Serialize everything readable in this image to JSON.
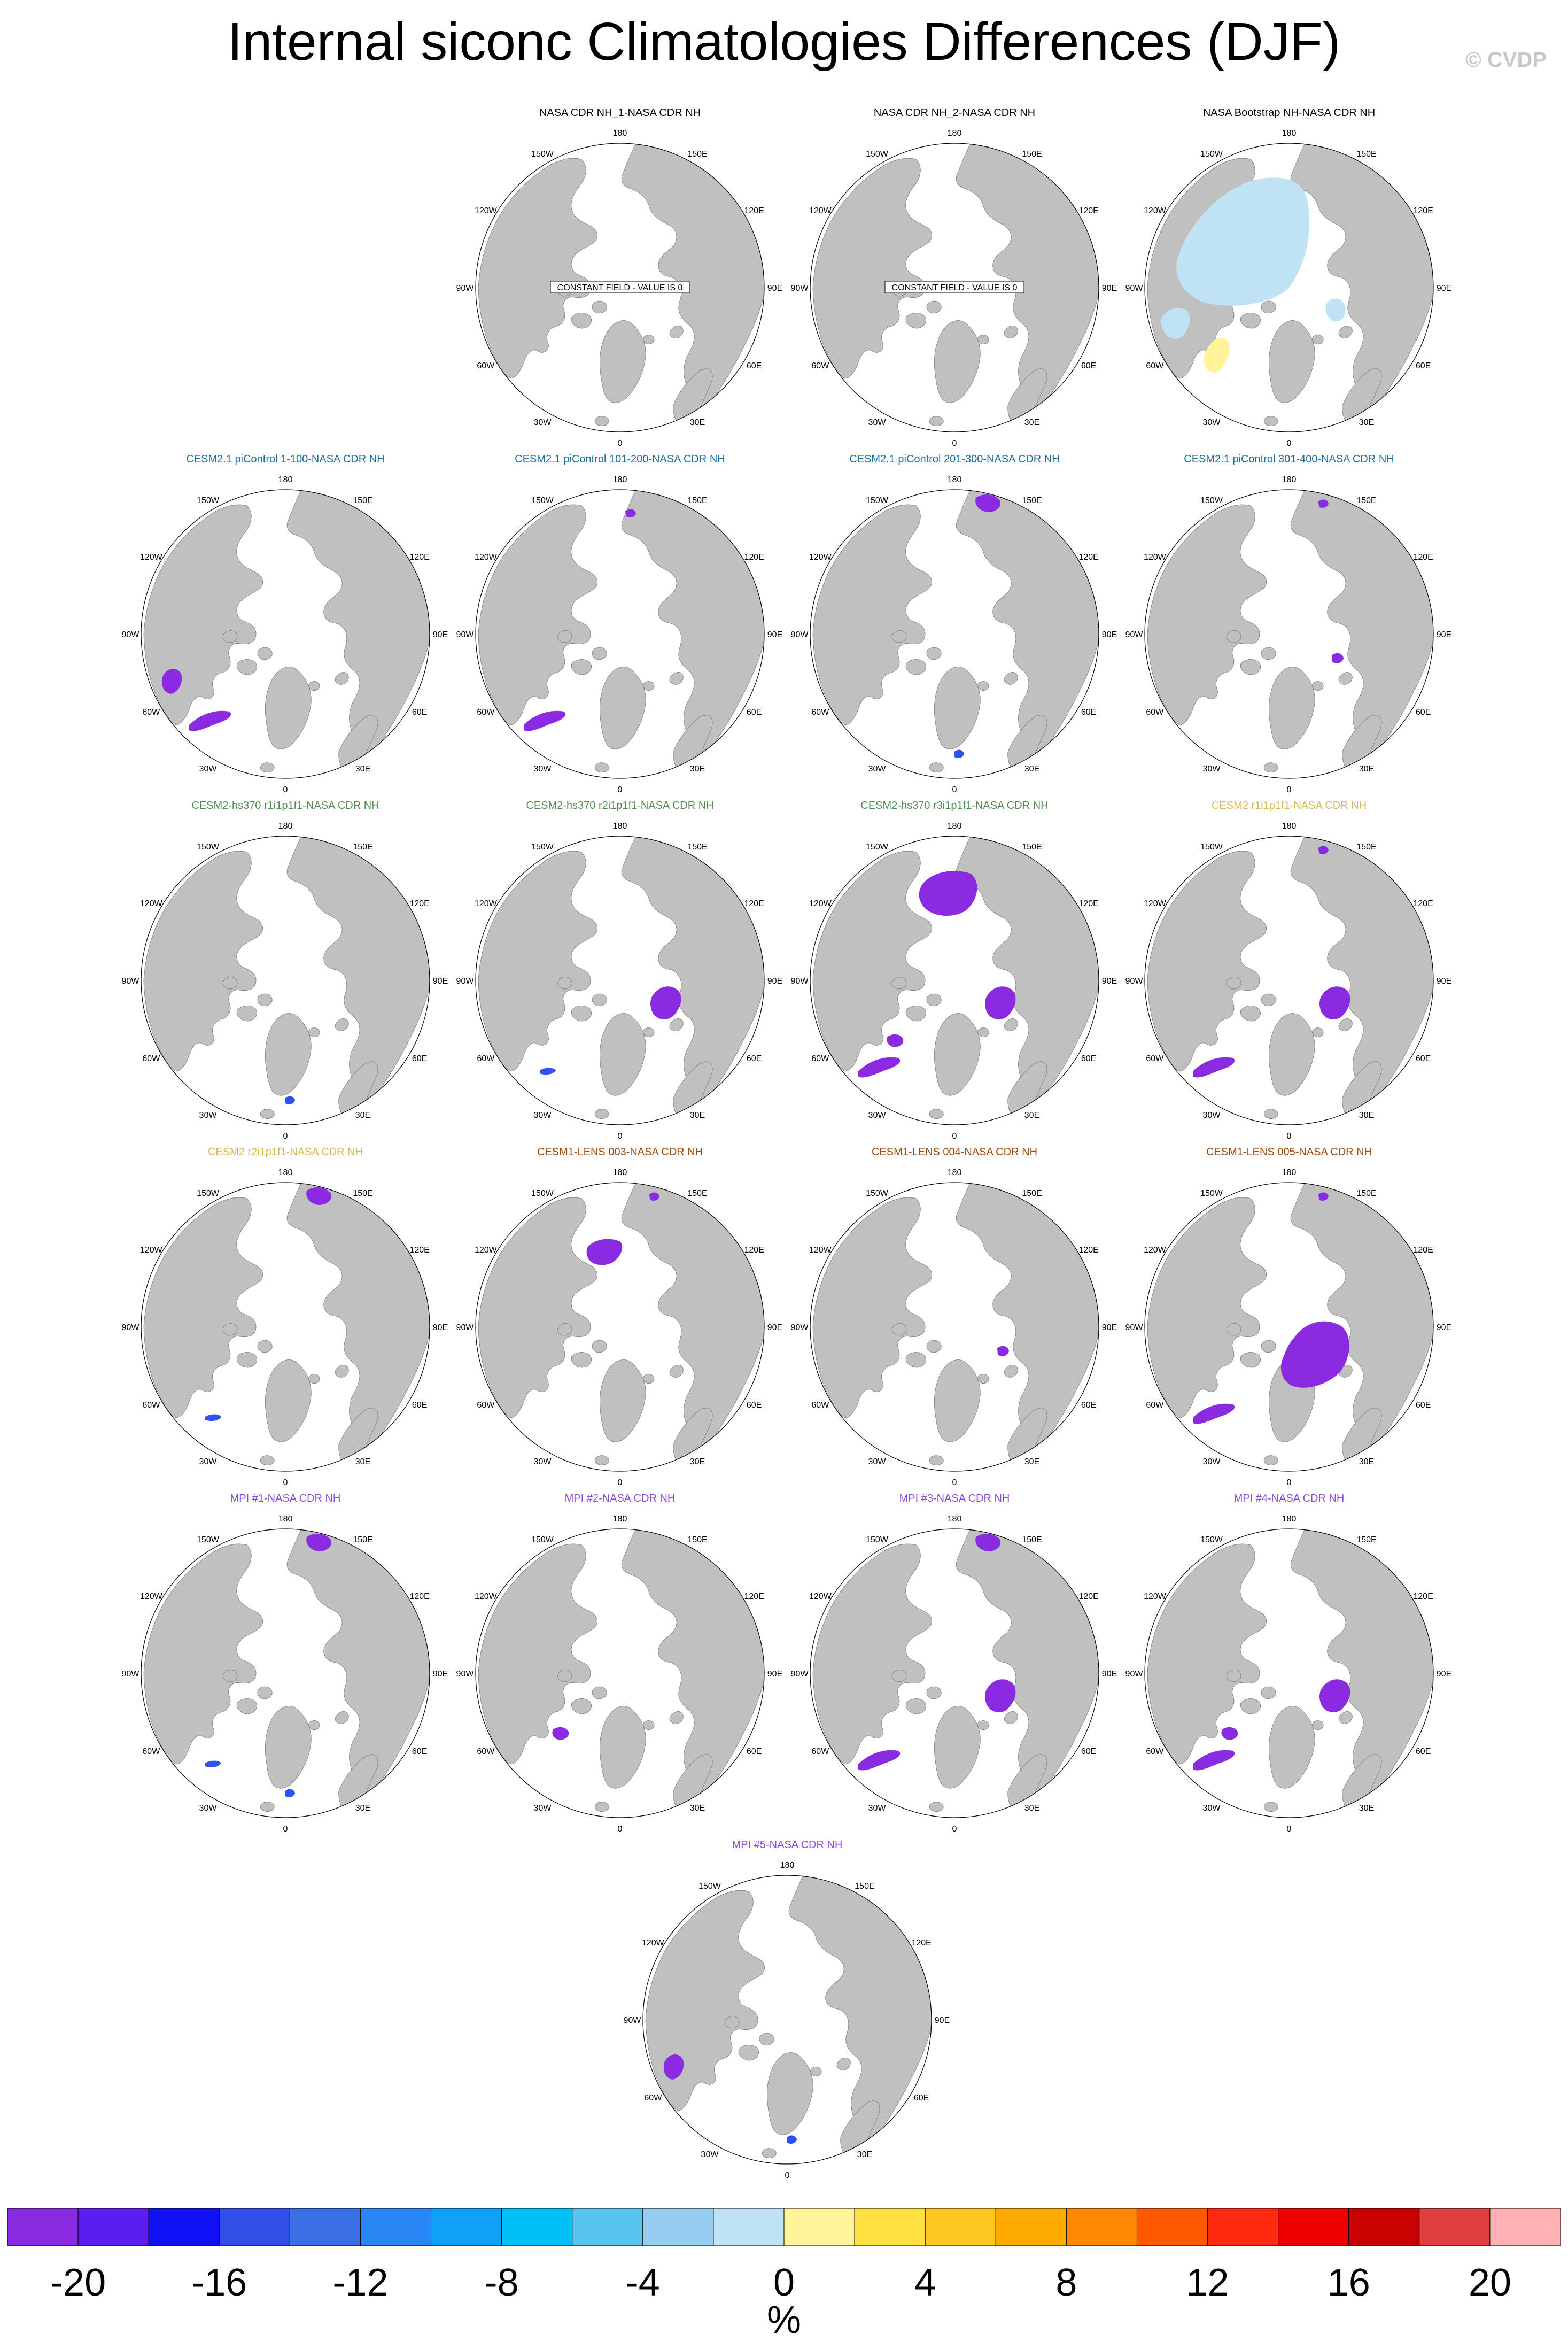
{
  "title": "Internal siconc Climatologies Differences (DJF)",
  "credit": "© CVDP",
  "lon_labels": [
    "180",
    "150E",
    "120E",
    "90E",
    "60E",
    "30E",
    "0",
    "30W",
    "60W",
    "90W",
    "120W",
    "150W"
  ],
  "constant_field_note": "CONSTANT FIELD - VALUE IS 0",
  "colors": {
    "ocean": "#ffffff",
    "land": "#c0c0c0",
    "anomaly_purple": "#8a2be2",
    "anomaly_blue": "#3050f0",
    "anomaly_lightblue": "#bfe3f5",
    "anomaly_yellow": "#fff49a",
    "title_nasa": "#000000",
    "title_cesm21": "#1f6f9a",
    "title_cesm2_hs370": "#4f8a4f",
    "title_cesm2": "#d4b85a",
    "title_cesm1": "#9a4a10",
    "title_mpi": "#8a4ae0"
  },
  "panels": [
    {
      "title": "NASA CDR NH_1-NASA CDR NH",
      "group": "nasa",
      "constant": true,
      "anomalies": []
    },
    {
      "title": "NASA CDR NH_2-NASA CDR NH",
      "group": "nasa",
      "constant": true,
      "anomalies": []
    },
    {
      "title": "NASA Bootstrap NH-NASA CDR NH",
      "group": "nasa",
      "constant": false,
      "anomalies": [
        "central-arctic-lightblue",
        "hudson-bay-lightblue",
        "baffin-yellow",
        "barents-lightblue"
      ]
    },
    {
      "title": "CESM2.1 piControl 1-100-NASA CDR NH",
      "group": "cesm21",
      "constant": false,
      "anomalies": [
        "hudson-bay-purple",
        "labrador-purple"
      ]
    },
    {
      "title": "CESM2.1 piControl 101-200-NASA CDR NH",
      "group": "cesm21",
      "constant": false,
      "anomalies": [
        "labrador-purple",
        "bering-small"
      ]
    },
    {
      "title": "CESM2.1 piControl 201-300-NASA CDR NH",
      "group": "cesm21",
      "constant": false,
      "anomalies": [
        "okhotsk-purple",
        "greenland-sea-small"
      ]
    },
    {
      "title": "CESM2.1 piControl 301-400-NASA CDR NH",
      "group": "cesm21",
      "constant": false,
      "anomalies": [
        "okhotsk-small",
        "barents-small"
      ]
    },
    {
      "title": "CESM2-hs370 r1i1p1f1-NASA CDR NH",
      "group": "cesm2_hs370",
      "constant": false,
      "anomalies": [
        "greenland-sea-small"
      ]
    },
    {
      "title": "CESM2-hs370 r2i1p1f1-NASA CDR NH",
      "group": "cesm2_hs370",
      "constant": false,
      "anomalies": [
        "barents-purple",
        "labrador-small"
      ]
    },
    {
      "title": "CESM2-hs370 r3i1p1f1-NASA CDR NH",
      "group": "cesm2_hs370",
      "constant": false,
      "anomalies": [
        "chukchi-big",
        "barents-purple",
        "labrador-purple",
        "hudson-strait"
      ]
    },
    {
      "title": "CESM2 r1i1p1f1-NASA CDR NH",
      "group": "cesm2",
      "constant": false,
      "anomalies": [
        "okhotsk-small",
        "barents-purple",
        "labrador-purple"
      ]
    },
    {
      "title": "CESM2 r2i1p1f1-NASA CDR NH",
      "group": "cesm2",
      "constant": false,
      "anomalies": [
        "okhotsk-purple",
        "labrador-small"
      ]
    },
    {
      "title": "CESM1-LENS 003-NASA CDR NH",
      "group": "cesm1",
      "constant": false,
      "anomalies": [
        "chukchi-mid",
        "okhotsk-small"
      ]
    },
    {
      "title": "CESM1-LENS 004-NASA CDR NH",
      "group": "cesm1",
      "constant": false,
      "anomalies": [
        "barents-small"
      ]
    },
    {
      "title": "CESM1-LENS 005-NASA CDR NH",
      "group": "cesm1",
      "constant": false,
      "anomalies": [
        "barents-big",
        "labrador-purple",
        "okhotsk-small"
      ]
    },
    {
      "title": "MPI #1-NASA CDR NH",
      "group": "mpi",
      "constant": false,
      "anomalies": [
        "okhotsk-purple",
        "labrador-small",
        "greenland-sea-small"
      ]
    },
    {
      "title": "MPI #2-NASA CDR NH",
      "group": "mpi",
      "constant": false,
      "anomalies": [
        "hudson-strait"
      ]
    },
    {
      "title": "MPI #3-NASA CDR NH",
      "group": "mpi",
      "constant": false,
      "anomalies": [
        "okhotsk-purple",
        "barents-purple",
        "labrador-purple"
      ]
    },
    {
      "title": "MPI #4-NASA CDR NH",
      "group": "mpi",
      "constant": false,
      "anomalies": [
        "labrador-purple",
        "barents-purple",
        "hudson-strait"
      ]
    },
    {
      "title": "MPI #5-NASA CDR NH",
      "group": "mpi",
      "constant": false,
      "anomalies": [
        "hudson-bay-purple",
        "greenland-sea-small"
      ]
    }
  ],
  "colorbar": {
    "colors": [
      "#8a2be2",
      "#5a1ef0",
      "#1010f5",
      "#3050e8",
      "#3a6fe5",
      "#2a85f5",
      "#10a0f8",
      "#00c0f8",
      "#5ac4f0",
      "#96cdf0",
      "#bfe3f5",
      "#fff49a",
      "#ffe040",
      "#ffc820",
      "#ffaa00",
      "#ff8800",
      "#ff5a00",
      "#ff2a10",
      "#f00000",
      "#c80000",
      "#e04040",
      "#ffb0b0"
    ],
    "tick_labels": [
      "-20",
      "-16",
      "-12",
      "-8",
      "-4",
      "0",
      "4",
      "8",
      "12",
      "16",
      "20"
    ],
    "units": "%"
  }
}
